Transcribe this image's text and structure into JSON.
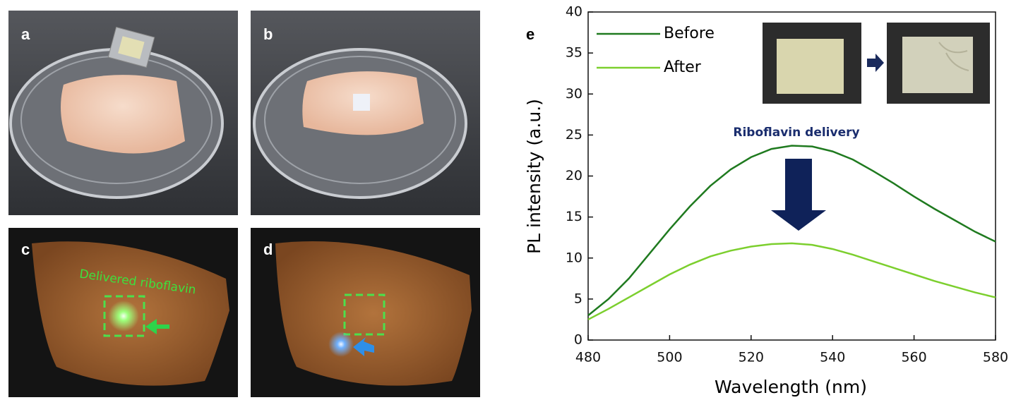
{
  "panel_labels": [
    "a",
    "b",
    "c",
    "d",
    "e"
  ],
  "photo_annotation": "Delivered riboflavin",
  "chart_data": {
    "type": "line",
    "xlabel": "Wavelength (nm)",
    "ylabel": "PL intensity (a.u.)",
    "annotation": "Riboflavin delivery",
    "x": [
      480,
      485,
      490,
      495,
      500,
      505,
      510,
      515,
      520,
      525,
      530,
      535,
      540,
      545,
      550,
      555,
      560,
      565,
      570,
      575,
      580
    ],
    "series": [
      {
        "name": "Before",
        "color": "#1f7a1f",
        "values": [
          3,
          5,
          7.5,
          10.5,
          13.5,
          16.3,
          18.8,
          20.8,
          22.3,
          23.3,
          23.7,
          23.6,
          23,
          22,
          20.6,
          19.1,
          17.5,
          16,
          14.6,
          13.2,
          12
        ]
      },
      {
        "name": "After",
        "color": "#7ccf2e",
        "values": [
          2.5,
          3.8,
          5.2,
          6.6,
          8,
          9.2,
          10.2,
          10.9,
          11.4,
          11.7,
          11.8,
          11.6,
          11.1,
          10.4,
          9.6,
          8.8,
          8,
          7.2,
          6.5,
          5.8,
          5.2
        ]
      }
    ],
    "xlim": [
      480,
      580
    ],
    "xticks": [
      480,
      500,
      520,
      540,
      560,
      580
    ],
    "ylim": [
      0,
      40
    ],
    "yticks": [
      0,
      5,
      10,
      15,
      20,
      25,
      30,
      35,
      40
    ],
    "legend": "upper left"
  }
}
